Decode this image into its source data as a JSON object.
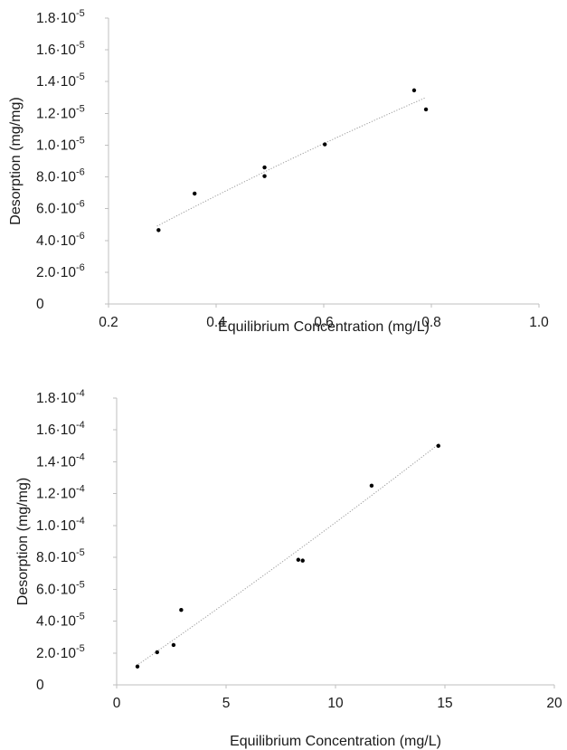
{
  "chart_data": [
    {
      "type": "scatter",
      "xlabel": "Equilibrium Concentration (mg/L)",
      "ylabel": "Desorption (mg/mg)",
      "xlim": [
        0.2,
        1.0
      ],
      "ylim": [
        0,
        1.8e-05
      ],
      "x_ticks": [
        "0.2",
        "0.4",
        "0.6",
        "0.8",
        "1.0"
      ],
      "x_tick_values": [
        0.2,
        0.4,
        0.6,
        0.8,
        1.0
      ],
      "y_ticks": [
        {
          "value": 0,
          "mantissa": "0",
          "exp": ""
        },
        {
          "value": 2e-06,
          "mantissa": "2.0·10",
          "exp": "-6"
        },
        {
          "value": 4e-06,
          "mantissa": "4.0·10",
          "exp": "-6"
        },
        {
          "value": 6e-06,
          "mantissa": "6.0·10",
          "exp": "-6"
        },
        {
          "value": 8e-06,
          "mantissa": "8.0·10",
          "exp": "-6"
        },
        {
          "value": 1e-05,
          "mantissa": "1.0·10",
          "exp": "-5"
        },
        {
          "value": 1.2e-05,
          "mantissa": "1.2·10",
          "exp": "-5"
        },
        {
          "value": 1.4e-05,
          "mantissa": "1.4·10",
          "exp": "-5"
        },
        {
          "value": 1.6e-05,
          "mantissa": "1.6·10",
          "exp": "-5"
        },
        {
          "value": 1.8e-05,
          "mantissa": "1.8·10",
          "exp": "-5"
        }
      ],
      "grid": false,
      "points": [
        {
          "x": 0.293,
          "y": 4.65e-06
        },
        {
          "x": 0.36,
          "y": 6.95e-06
        },
        {
          "x": 0.49,
          "y": 8.05e-06
        },
        {
          "x": 0.49,
          "y": 8.6e-06
        },
        {
          "x": 0.602,
          "y": 1.005e-05
        },
        {
          "x": 0.768,
          "y": 1.345e-05
        },
        {
          "x": 0.79,
          "y": 1.225e-05
        }
      ],
      "trendline": {
        "style": "dotted",
        "x": [
          0.29,
          0.79
        ],
        "y": [
          4.9e-06,
          1.3e-05
        ]
      }
    },
    {
      "type": "scatter",
      "xlabel": "Equilibrium Concentration (mg/L)",
      "ylabel": "Desorption (mg/mg)",
      "xlim": [
        0,
        20
      ],
      "ylim": [
        0,
        0.00018
      ],
      "x_ticks": [
        "0",
        "5",
        "10",
        "15",
        "20"
      ],
      "x_tick_values": [
        0,
        5,
        10,
        15,
        20
      ],
      "y_ticks": [
        {
          "value": 0,
          "mantissa": "0",
          "exp": ""
        },
        {
          "value": 2e-05,
          "mantissa": "2.0·10",
          "exp": "-5"
        },
        {
          "value": 4e-05,
          "mantissa": "4.0·10",
          "exp": "-5"
        },
        {
          "value": 6e-05,
          "mantissa": "6.0·10",
          "exp": "-5"
        },
        {
          "value": 8e-05,
          "mantissa": "8.0·10",
          "exp": "-5"
        },
        {
          "value": 0.0001,
          "mantissa": "1.0·10",
          "exp": "-4"
        },
        {
          "value": 0.00012,
          "mantissa": "1.2·10",
          "exp": "-4"
        },
        {
          "value": 0.00014,
          "mantissa": "1.4·10",
          "exp": "-4"
        },
        {
          "value": 0.00016,
          "mantissa": "1.6·10",
          "exp": "-4"
        },
        {
          "value": 0.00018,
          "mantissa": "1.8·10",
          "exp": "-4"
        }
      ],
      "grid": false,
      "points": [
        {
          "x": 0.95,
          "y": 1.15e-05
        },
        {
          "x": 1.85,
          "y": 2.05e-05
        },
        {
          "x": 2.6,
          "y": 2.5e-05
        },
        {
          "x": 2.95,
          "y": 4.7e-05
        },
        {
          "x": 8.3,
          "y": 7.85e-05
        },
        {
          "x": 8.5,
          "y": 7.8e-05
        },
        {
          "x": 11.65,
          "y": 0.000125
        },
        {
          "x": 14.7,
          "y": 0.00015
        }
      ],
      "trendline": {
        "style": "dotted",
        "x": [
          0.9,
          14.8
        ],
        "y": [
          1.2e-05,
          0.000152
        ]
      }
    }
  ]
}
